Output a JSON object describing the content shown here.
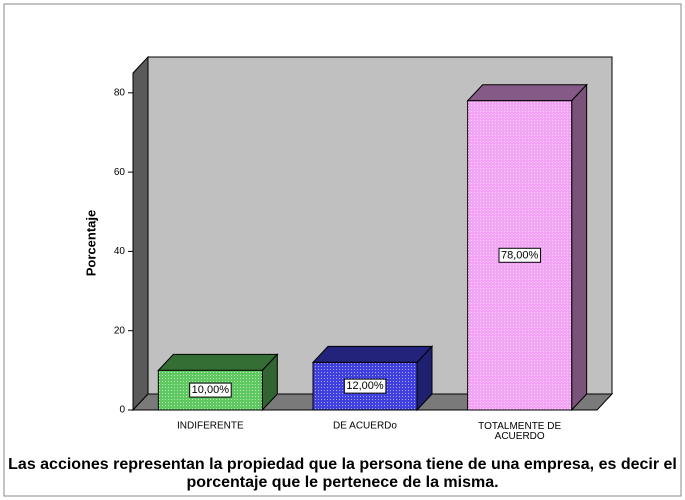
{
  "chart_data": {
    "type": "bar3d",
    "title": "Las acciones representan la propiedad que la persona tiene de una empresa, es decir el porcentaje que le pertenece de la misma.",
    "y_label": "Porcentaje",
    "categories": [
      "INDIFERENTE",
      "DE ACUERDo",
      "TOTALMENTE DE ACUERDO"
    ],
    "values": [
      10,
      12,
      78
    ],
    "value_labels": [
      "10,00%",
      "12,00%",
      "78,00%"
    ],
    "colors": [
      "#60c860",
      "#4040e0",
      "#f4a4f4"
    ],
    "ylim": [
      0,
      85
    ],
    "yticks": [
      0,
      20,
      40,
      60,
      80
    ]
  }
}
